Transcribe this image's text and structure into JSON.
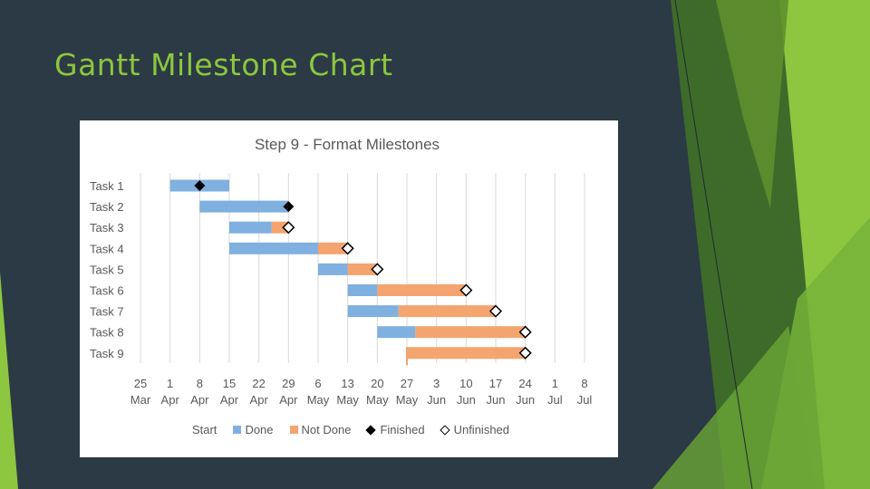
{
  "slide": {
    "title": "Gantt Milestone Chart"
  },
  "colors": {
    "background": "#2b3a44",
    "accent_green": "#8dc63f",
    "done": "#7fb0e0",
    "not_done": "#f4a46f",
    "finished": "#000000",
    "unfinished_fill": "#ffffff",
    "unfinished_stroke": "#000000",
    "text": "#595959",
    "grid": "#d9d9d9"
  },
  "legend": {
    "start": "Start",
    "done": "Done",
    "not_done": "Not Done",
    "finished": "Finished",
    "unfinished": "Unfinished"
  },
  "chart_data": {
    "type": "bar",
    "subtype": "gantt-milestone",
    "title": "Step 9 - Format Milestones",
    "xlabel": "",
    "ylabel": "",
    "x_unit": "days since 25 Mar",
    "xlim": [
      0,
      105
    ],
    "grid": true,
    "legend_position": "bottom",
    "ticks": [
      {
        "value": 0,
        "day": "25",
        "month": "Mar"
      },
      {
        "value": 7,
        "day": "1",
        "month": "Apr"
      },
      {
        "value": 14,
        "day": "8",
        "month": "Apr"
      },
      {
        "value": 21,
        "day": "15",
        "month": "Apr"
      },
      {
        "value": 28,
        "day": "22",
        "month": "Apr"
      },
      {
        "value": 35,
        "day": "29",
        "month": "Apr"
      },
      {
        "value": 42,
        "day": "6",
        "month": "May"
      },
      {
        "value": 49,
        "day": "13",
        "month": "May"
      },
      {
        "value": 56,
        "day": "20",
        "month": "May"
      },
      {
        "value": 63,
        "day": "27",
        "month": "May"
      },
      {
        "value": 70,
        "day": "3",
        "month": "Jun"
      },
      {
        "value": 77,
        "day": "10",
        "month": "Jun"
      },
      {
        "value": 84,
        "day": "17",
        "month": "Jun"
      },
      {
        "value": 91,
        "day": "24",
        "month": "Jun"
      },
      {
        "value": 98,
        "day": "1",
        "month": "Jul"
      },
      {
        "value": 105,
        "day": "8",
        "month": "Jul"
      }
    ],
    "series": [
      "Start",
      "Done",
      "Not Done",
      "Finished",
      "Unfinished"
    ],
    "tasks": [
      {
        "name": "Task 1",
        "start": 7,
        "done": 14,
        "not_done": 0,
        "milestone": 14,
        "finished": true
      },
      {
        "name": "Task 2",
        "start": 14,
        "done": 21,
        "not_done": 0,
        "milestone": 35,
        "finished": true
      },
      {
        "name": "Task 3",
        "start": 21,
        "done": 10,
        "not_done": 4,
        "milestone": 35,
        "finished": false
      },
      {
        "name": "Task 4",
        "start": 21,
        "done": 21,
        "not_done": 7,
        "milestone": 49,
        "finished": false
      },
      {
        "name": "Task 5",
        "start": 42,
        "done": 7,
        "not_done": 7,
        "milestone": 56,
        "finished": false
      },
      {
        "name": "Task 6",
        "start": 49,
        "done": 7,
        "not_done": 21,
        "milestone": 77,
        "finished": false
      },
      {
        "name": "Task 7",
        "start": 49,
        "done": 12,
        "not_done": 23,
        "milestone": 84,
        "finished": false
      },
      {
        "name": "Task 8",
        "start": 56,
        "done": 9,
        "not_done": 26,
        "milestone": 91,
        "finished": false
      },
      {
        "name": "Task 9",
        "start": 63,
        "done": 0,
        "not_done": 28,
        "milestone": 91,
        "finished": false
      }
    ]
  }
}
